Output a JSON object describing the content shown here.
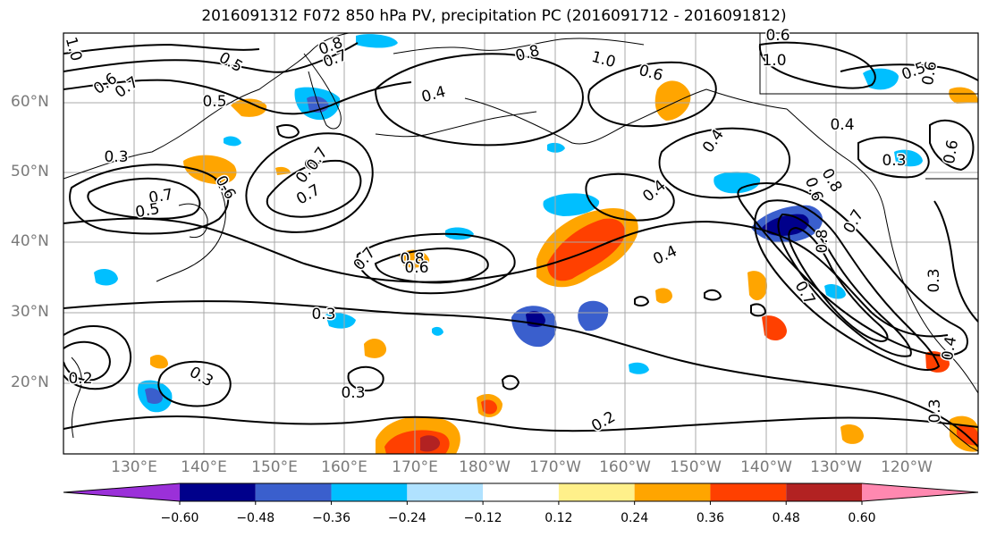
{
  "title": "2016091312 F072 850 hPa PV, precipitation PC (2016091712 - 2016091812)",
  "lat_labels": [
    "60°N",
    "50°N",
    "40°N",
    "30°N",
    "20°N"
  ],
  "lon_labels": [
    "130°E",
    "140°E",
    "150°E",
    "160°E",
    "170°E",
    "180°W",
    "170°W",
    "160°W",
    "150°W",
    "140°W",
    "130°W",
    "120°W"
  ],
  "colorbar": {
    "ticks": [
      "−0.60",
      "−0.48",
      "−0.36",
      "−0.24",
      "−0.12",
      "0.12",
      "0.24",
      "0.36",
      "0.48",
      "0.60"
    ],
    "colors": [
      "#9b30d9",
      "#00008b",
      "#3a5fcd",
      "#00bfff",
      "#b0e2ff",
      "#ffffff",
      "#fff08a",
      "#ffa500",
      "#ff4000",
      "#b22222",
      "#ff88b0"
    ]
  },
  "contour_labels": [
    "0.8",
    "0.7",
    "0.8",
    "1.0",
    "0.5",
    "0.6",
    "0.7",
    "0.6",
    "1.0",
    "0.5",
    "0.6",
    "0.4",
    "0.6",
    "0.4",
    "0.3",
    "0.6",
    "0.7",
    "0.4",
    "0.3",
    "0.7",
    "0.5",
    "0.6",
    "0.7",
    "0.6",
    "0.4",
    "0.7",
    "0.8",
    "0.6",
    "0.4",
    "0.8",
    "0.7",
    "0.3",
    "0.3",
    "0.2",
    "0.3",
    "0.3",
    "0.3",
    "0.2",
    "1.0",
    "0.8",
    "0.7",
    "0.6",
    "0.5",
    "0.4"
  ]
}
